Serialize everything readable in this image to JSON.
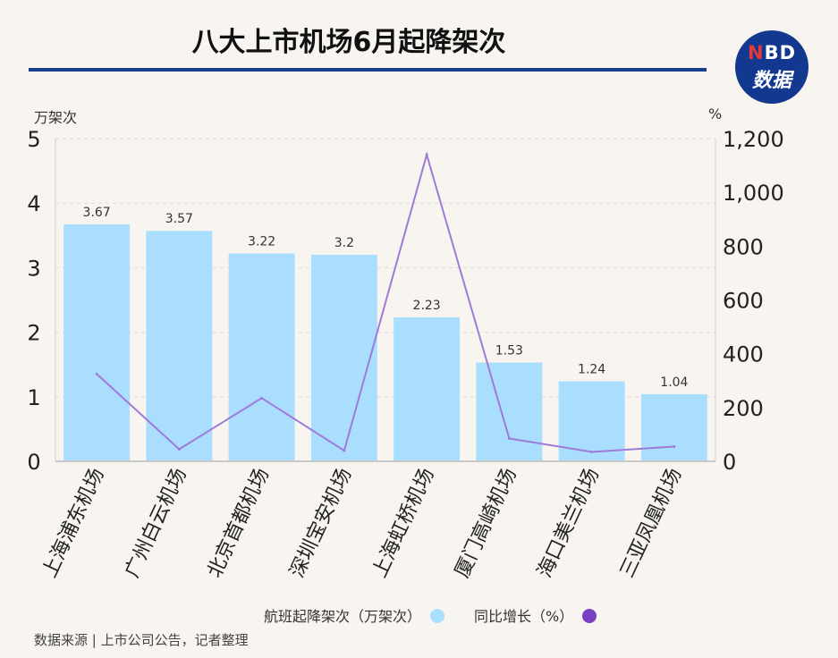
{
  "title": "八大上市机场6月起降架次",
  "logo": {
    "n": "N",
    "bd": "BD",
    "line2": "数据"
  },
  "y_left_unit": "万架次",
  "y_right_unit": "%",
  "source": "数据来源 | 上市公司公告，记者整理",
  "legend": {
    "bar_label": "航班起降架次（万架次）",
    "line_label": "同比增长（%）"
  },
  "colors": {
    "bar": "#aadeff",
    "line": "#a07ad8",
    "line_dot": "#7b3fc4",
    "rule": "#1b3f8f"
  },
  "chart_data": {
    "type": "bar",
    "title": "八大上市机场6月起降架次",
    "categories": [
      "上海浦东机场",
      "广州白云机场",
      "北京首都机场",
      "深圳宝安机场",
      "上海虹桥机场",
      "厦门高崎机场",
      "海口美兰机场",
      "三亚凤凰机场"
    ],
    "series": [
      {
        "name": "航班起降架次（万架次）",
        "type": "bar",
        "axis": "left",
        "values": [
          3.67,
          3.57,
          3.22,
          3.2,
          2.23,
          1.53,
          1.24,
          1.04
        ],
        "labels": [
          "3.67",
          "3.57",
          "3.22",
          "3.2",
          "2.23",
          "1.53",
          "1.24",
          "1.04"
        ]
      },
      {
        "name": "同比增长（%）",
        "type": "line",
        "axis": "right",
        "values": [
          325,
          45,
          235,
          40,
          1140,
          85,
          35,
          55
        ]
      }
    ],
    "ylim_left": [
      0,
      5
    ],
    "yticks_left": [
      "0",
      "1",
      "2",
      "3",
      "4",
      "5"
    ],
    "ylim_right": [
      0,
      1200
    ],
    "yticks_right": [
      "0",
      "200",
      "400",
      "600",
      "800",
      "1,000",
      "1,200"
    ],
    "grid": true,
    "legend_position": "bottom"
  }
}
